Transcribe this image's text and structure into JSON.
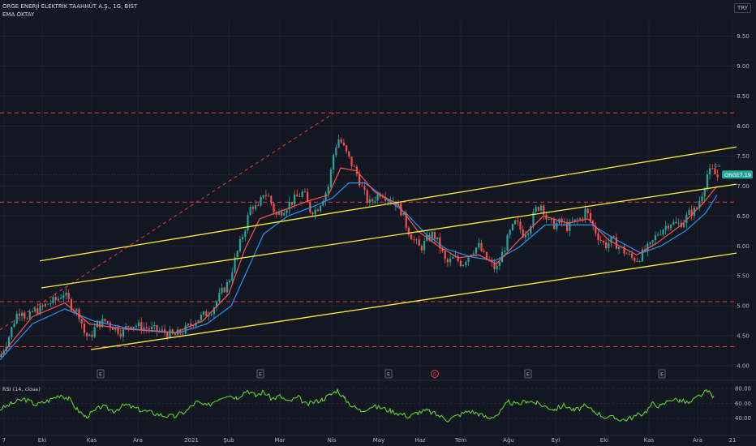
{
  "header": {
    "symbol_line": "ORGE ENERJİ ELEKTRİK TAAHHÜT A.Ş., 1G, BIST",
    "indicator": "EMA OKTAY"
  },
  "currency": "TRY",
  "price_tag": {
    "ticker": "ORGE",
    "value": "7.19"
  },
  "rsi": {
    "label": "RSI (14, close)",
    "levels": [
      "80.00",
      "60.00",
      "40.00"
    ]
  },
  "colors": {
    "background": "#131722",
    "up": "#26a69a",
    "down": "#ef5350",
    "channel": "#ffeb3b",
    "support": "#f23645",
    "ema_fast": "#ff5252",
    "ema_slow": "#2196f3",
    "rsi": "#5bd32c",
    "tag": "#26a69a"
  },
  "chart_data": {
    "type": "line",
    "price_axis": {
      "ticks": [
        "9.50",
        "9.00",
        "8.50",
        "8.00",
        "7.50",
        "7.00",
        "6.50",
        "6.00",
        "5.50",
        "5.00",
        "4.50",
        "4.00"
      ],
      "range": [
        3.88,
        9.75
      ]
    },
    "time_axis": {
      "ticks": [
        "7",
        "Eki",
        "Kas",
        "Ara",
        "2021",
        "Şub",
        "Mar",
        "Nis",
        "May",
        "Haz",
        "Tem",
        "Ağu",
        "Eyl",
        "Eki",
        "Kas",
        "Ara",
        "21"
      ]
    },
    "price_path": [
      [
        0,
        4.15
      ],
      [
        10,
        4.45
      ],
      [
        20,
        4.85
      ],
      [
        27,
        4.95
      ],
      [
        33,
        4.75
      ],
      [
        40,
        4.9
      ],
      [
        50,
        4.95
      ],
      [
        60,
        5.05
      ],
      [
        70,
        5.1
      ],
      [
        78,
        5.22
      ],
      [
        88,
        5.0
      ],
      [
        98,
        4.85
      ],
      [
        104,
        4.55
      ],
      [
        110,
        4.45
      ],
      [
        120,
        4.7
      ],
      [
        130,
        4.75
      ],
      [
        140,
        4.65
      ],
      [
        150,
        4.55
      ],
      [
        160,
        4.7
      ],
      [
        175,
        4.65
      ],
      [
        190,
        4.6
      ],
      [
        205,
        4.55
      ],
      [
        215,
        4.5
      ],
      [
        228,
        4.6
      ],
      [
        240,
        4.75
      ],
      [
        252,
        4.85
      ],
      [
        262,
        4.95
      ],
      [
        272,
        5.2
      ],
      [
        282,
        5.4
      ],
      [
        288,
        5.7
      ],
      [
        295,
        6.0
      ],
      [
        302,
        6.3
      ],
      [
        310,
        6.7
      ],
      [
        318,
        6.6
      ],
      [
        325,
        6.9
      ],
      [
        332,
        6.8
      ],
      [
        340,
        6.5
      ],
      [
        348,
        6.6
      ],
      [
        356,
        6.7
      ],
      [
        365,
        6.8
      ],
      [
        374,
        6.9
      ],
      [
        382,
        6.6
      ],
      [
        390,
        6.6
      ],
      [
        398,
        6.8
      ],
      [
        405,
        7.0
      ],
      [
        412,
        7.6
      ],
      [
        418,
        7.8
      ],
      [
        425,
        7.6
      ],
      [
        432,
        7.4
      ],
      [
        440,
        7.2
      ],
      [
        448,
        6.9
      ],
      [
        455,
        6.7
      ],
      [
        462,
        6.8
      ],
      [
        470,
        6.9
      ],
      [
        478,
        6.8
      ],
      [
        486,
        6.75
      ],
      [
        494,
        6.6
      ],
      [
        502,
        6.3
      ],
      [
        510,
        6.1
      ],
      [
        518,
        5.95
      ],
      [
        526,
        6.1
      ],
      [
        534,
        6.2
      ],
      [
        542,
        6.0
      ],
      [
        550,
        5.7
      ],
      [
        560,
        5.8
      ],
      [
        570,
        5.7
      ],
      [
        580,
        5.9
      ],
      [
        590,
        6.0
      ],
      [
        598,
        5.8
      ],
      [
        605,
        5.7
      ],
      [
        612,
        5.6
      ],
      [
        620,
        5.9
      ],
      [
        628,
        6.2
      ],
      [
        636,
        6.4
      ],
      [
        645,
        6.2
      ],
      [
        652,
        6.3
      ],
      [
        660,
        6.6
      ],
      [
        668,
        6.7
      ],
      [
        675,
        6.4
      ],
      [
        683,
        6.35
      ],
      [
        692,
        6.4
      ],
      [
        700,
        6.3
      ],
      [
        708,
        6.4
      ],
      [
        716,
        6.45
      ],
      [
        722,
        6.6
      ],
      [
        730,
        6.35
      ],
      [
        738,
        6.15
      ],
      [
        746,
        6.0
      ],
      [
        754,
        6.1
      ],
      [
        762,
        6.0
      ],
      [
        770,
        5.9
      ],
      [
        778,
        5.8
      ],
      [
        786,
        5.78
      ],
      [
        794,
        5.9
      ],
      [
        802,
        6.0
      ],
      [
        810,
        6.2
      ],
      [
        818,
        6.3
      ],
      [
        826,
        6.4
      ],
      [
        834,
        6.35
      ],
      [
        842,
        6.4
      ],
      [
        850,
        6.55
      ],
      [
        858,
        6.6
      ],
      [
        866,
        6.9
      ],
      [
        872,
        7.2
      ],
      [
        878,
        7.25
      ],
      [
        884,
        7.15
      ]
    ],
    "ema_fast": [
      [
        0,
        4.15
      ],
      [
        40,
        4.82
      ],
      [
        80,
        5.05
      ],
      [
        110,
        4.7
      ],
      [
        150,
        4.62
      ],
      [
        215,
        4.55
      ],
      [
        250,
        4.75
      ],
      [
        282,
        5.2
      ],
      [
        302,
        5.95
      ],
      [
        320,
        6.45
      ],
      [
        350,
        6.6
      ],
      [
        380,
        6.75
      ],
      [
        405,
        6.85
      ],
      [
        420,
        7.3
      ],
      [
        440,
        7.25
      ],
      [
        462,
        6.9
      ],
      [
        490,
        6.7
      ],
      [
        515,
        6.25
      ],
      [
        540,
        6.0
      ],
      [
        565,
        5.8
      ],
      [
        590,
        5.85
      ],
      [
        612,
        5.7
      ],
      [
        640,
        6.1
      ],
      [
        670,
        6.5
      ],
      [
        700,
        6.38
      ],
      [
        725,
        6.45
      ],
      [
        750,
        6.1
      ],
      [
        785,
        5.85
      ],
      [
        810,
        6.05
      ],
      [
        840,
        6.35
      ],
      [
        866,
        6.7
      ],
      [
        884,
        7.0
      ]
    ],
    "ema_slow": [
      [
        0,
        4.1
      ],
      [
        40,
        4.7
      ],
      [
        80,
        4.95
      ],
      [
        115,
        4.75
      ],
      [
        160,
        4.62
      ],
      [
        220,
        4.55
      ],
      [
        255,
        4.7
      ],
      [
        285,
        5.0
      ],
      [
        305,
        5.6
      ],
      [
        325,
        6.2
      ],
      [
        355,
        6.5
      ],
      [
        385,
        6.65
      ],
      [
        410,
        6.8
      ],
      [
        430,
        7.05
      ],
      [
        450,
        7.05
      ],
      [
        475,
        6.8
      ],
      [
        500,
        6.55
      ],
      [
        525,
        6.2
      ],
      [
        550,
        5.95
      ],
      [
        580,
        5.82
      ],
      [
        610,
        5.75
      ],
      [
        640,
        5.98
      ],
      [
        672,
        6.35
      ],
      [
        705,
        6.35
      ],
      [
        730,
        6.35
      ],
      [
        760,
        6.1
      ],
      [
        790,
        5.88
      ],
      [
        815,
        6.0
      ],
      [
        845,
        6.25
      ],
      [
        870,
        6.55
      ],
      [
        884,
        6.85
      ]
    ],
    "channel_lines": [
      {
        "from": [
          49,
          5.75
        ],
        "to": [
          908,
          7.65
        ]
      },
      {
        "from": [
          51,
          5.3
        ],
        "to": [
          908,
          7.03
        ]
      },
      {
        "from": [
          112,
          4.27
        ],
        "to": [
          908,
          5.88
        ]
      }
    ],
    "support_levels": [
      8.22,
      6.73,
      5.07,
      4.32
    ],
    "trend_line": {
      "from": [
        0,
        4.6
      ],
      "to": [
        412,
        8.22
      ]
    },
    "markers": [
      {
        "x": 124,
        "label": "E"
      },
      {
        "x": 321,
        "label": "E"
      },
      {
        "x": 479,
        "label": "E"
      },
      {
        "x": 536,
        "label": "S"
      },
      {
        "x": 651,
        "label": "E"
      },
      {
        "x": 816,
        "label": "E"
      }
    ],
    "rsi_series": [
      [
        0,
        52
      ],
      [
        15,
        60
      ],
      [
        30,
        66
      ],
      [
        45,
        58
      ],
      [
        60,
        64
      ],
      [
        75,
        72
      ],
      [
        85,
        66
      ],
      [
        95,
        52
      ],
      [
        105,
        42
      ],
      [
        115,
        48
      ],
      [
        125,
        56
      ],
      [
        140,
        50
      ],
      [
        155,
        58
      ],
      [
        170,
        52
      ],
      [
        185,
        48
      ],
      [
        200,
        44
      ],
      [
        215,
        42
      ],
      [
        230,
        50
      ],
      [
        242,
        62
      ],
      [
        255,
        56
      ],
      [
        268,
        66
      ],
      [
        280,
        72
      ],
      [
        292,
        68
      ],
      [
        305,
        78
      ],
      [
        315,
        70
      ],
      [
        325,
        76
      ],
      [
        335,
        66
      ],
      [
        345,
        70
      ],
      [
        355,
        62
      ],
      [
        368,
        68
      ],
      [
        378,
        58
      ],
      [
        388,
        62
      ],
      [
        398,
        66
      ],
      [
        408,
        72
      ],
      [
        416,
        78
      ],
      [
        425,
        66
      ],
      [
        435,
        56
      ],
      [
        445,
        50
      ],
      [
        458,
        56
      ],
      [
        470,
        54
      ],
      [
        482,
        50
      ],
      [
        494,
        46
      ],
      [
        505,
        42
      ],
      [
        515,
        48
      ],
      [
        527,
        50
      ],
      [
        540,
        44
      ],
      [
        552,
        38
      ],
      [
        565,
        44
      ],
      [
        578,
        50
      ],
      [
        590,
        46
      ],
      [
        602,
        40
      ],
      [
        615,
        46
      ],
      [
        627,
        62
      ],
      [
        638,
        58
      ],
      [
        650,
        64
      ],
      [
        662,
        60
      ],
      [
        672,
        56
      ],
      [
        684,
        52
      ],
      [
        696,
        58
      ],
      [
        708,
        50
      ],
      [
        720,
        56
      ],
      [
        732,
        50
      ],
      [
        745,
        42
      ],
      [
        758,
        40
      ],
      [
        770,
        38
      ],
      [
        782,
        42
      ],
      [
        795,
        48
      ],
      [
        805,
        60
      ],
      [
        815,
        56
      ],
      [
        826,
        66
      ],
      [
        838,
        64
      ],
      [
        850,
        60
      ],
      [
        862,
        70
      ],
      [
        872,
        76
      ],
      [
        880,
        70
      ]
    ]
  }
}
